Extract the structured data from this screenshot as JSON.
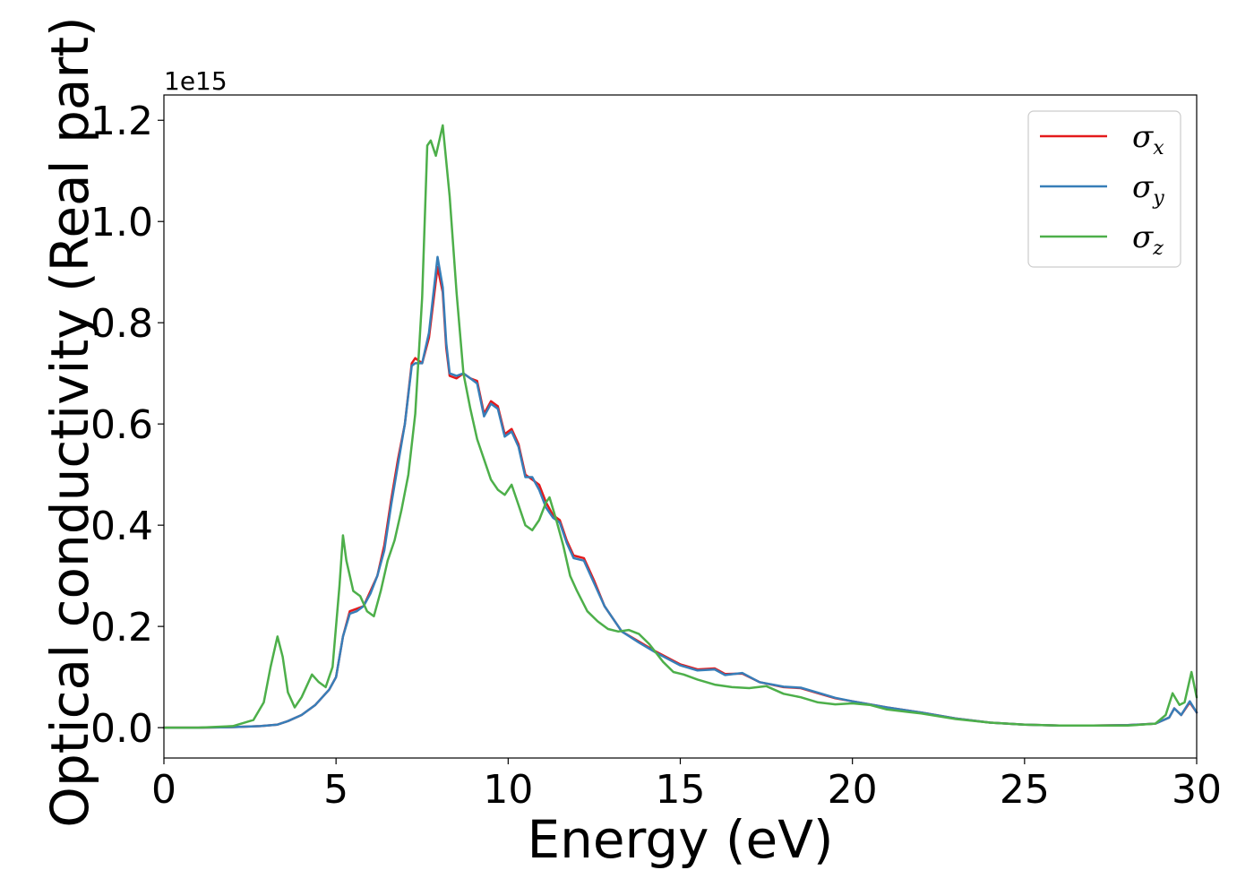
{
  "chart_data": {
    "type": "line",
    "xlabel": "Energy (eV)",
    "ylabel": "Optical conductivity (Real part)",
    "y_offset_label": "1e15",
    "xlim": [
      0,
      30
    ],
    "ylim": [
      -0.06,
      1.25
    ],
    "x_ticks": [
      0,
      5,
      10,
      15,
      20,
      25,
      30
    ],
    "x_tick_labels": [
      "0",
      "5",
      "10",
      "15",
      "20",
      "25",
      "30"
    ],
    "y_ticks": [
      0.0,
      0.2,
      0.4,
      0.6,
      0.8,
      1.0,
      1.2
    ],
    "y_tick_labels": [
      "0.0",
      "0.2",
      "0.4",
      "0.6",
      "0.8",
      "1.0",
      "1.2"
    ],
    "grid": false,
    "legend_position": "top-right",
    "series": [
      {
        "name": "σx",
        "symbol": "σ",
        "subscript": "x",
        "color": "#e41a1c",
        "points": [
          [
            0,
            0.0
          ],
          [
            1,
            0.0
          ],
          [
            2,
            0.001
          ],
          [
            2.8,
            0.003
          ],
          [
            3.3,
            0.006
          ],
          [
            3.6,
            0.013
          ],
          [
            4.0,
            0.025
          ],
          [
            4.4,
            0.045
          ],
          [
            4.8,
            0.075
          ],
          [
            5.0,
            0.1
          ],
          [
            5.2,
            0.18
          ],
          [
            5.4,
            0.23
          ],
          [
            5.6,
            0.235
          ],
          [
            5.8,
            0.24
          ],
          [
            6.0,
            0.27
          ],
          [
            6.2,
            0.3
          ],
          [
            6.4,
            0.36
          ],
          [
            6.6,
            0.45
          ],
          [
            6.8,
            0.53
          ],
          [
            7.0,
            0.6
          ],
          [
            7.2,
            0.72
          ],
          [
            7.3,
            0.73
          ],
          [
            7.5,
            0.72
          ],
          [
            7.7,
            0.77
          ],
          [
            7.95,
            0.91
          ],
          [
            8.1,
            0.86
          ],
          [
            8.2,
            0.75
          ],
          [
            8.3,
            0.695
          ],
          [
            8.5,
            0.69
          ],
          [
            8.7,
            0.7
          ],
          [
            8.9,
            0.69
          ],
          [
            9.1,
            0.685
          ],
          [
            9.3,
            0.62
          ],
          [
            9.5,
            0.645
          ],
          [
            9.7,
            0.635
          ],
          [
            9.9,
            0.58
          ],
          [
            10.1,
            0.59
          ],
          [
            10.3,
            0.56
          ],
          [
            10.5,
            0.5
          ],
          [
            10.7,
            0.49
          ],
          [
            10.9,
            0.48
          ],
          [
            11.1,
            0.445
          ],
          [
            11.3,
            0.42
          ],
          [
            11.5,
            0.41
          ],
          [
            11.7,
            0.37
          ],
          [
            11.9,
            0.34
          ],
          [
            12.2,
            0.335
          ],
          [
            12.5,
            0.29
          ],
          [
            12.8,
            0.24
          ],
          [
            13.0,
            0.22
          ],
          [
            13.3,
            0.19
          ],
          [
            13.8,
            0.17
          ],
          [
            14.3,
            0.15
          ],
          [
            15.0,
            0.125
          ],
          [
            15.5,
            0.115
          ],
          [
            16.0,
            0.117
          ],
          [
            16.3,
            0.106
          ],
          [
            16.8,
            0.107
          ],
          [
            17.3,
            0.09
          ],
          [
            18.0,
            0.08
          ],
          [
            18.5,
            0.078
          ],
          [
            19.0,
            0.068
          ],
          [
            19.5,
            0.058
          ],
          [
            20.0,
            0.052
          ],
          [
            21.0,
            0.04
          ],
          [
            22.0,
            0.03
          ],
          [
            23.0,
            0.018
          ],
          [
            24.0,
            0.01
          ],
          [
            25.0,
            0.006
          ],
          [
            26.0,
            0.004
          ],
          [
            27.0,
            0.004
          ],
          [
            28.0,
            0.005
          ],
          [
            28.8,
            0.008
          ],
          [
            29.2,
            0.02
          ],
          [
            29.35,
            0.038
          ],
          [
            29.55,
            0.025
          ],
          [
            29.8,
            0.05
          ],
          [
            30.0,
            0.03
          ]
        ]
      },
      {
        "name": "σy",
        "symbol": "σ",
        "subscript": "y",
        "color": "#377eb8",
        "points": [
          [
            0,
            0.0
          ],
          [
            1,
            0.0
          ],
          [
            2,
            0.001
          ],
          [
            2.8,
            0.003
          ],
          [
            3.3,
            0.006
          ],
          [
            3.6,
            0.013
          ],
          [
            4.0,
            0.025
          ],
          [
            4.4,
            0.045
          ],
          [
            4.8,
            0.075
          ],
          [
            5.0,
            0.1
          ],
          [
            5.2,
            0.18
          ],
          [
            5.4,
            0.225
          ],
          [
            5.6,
            0.23
          ],
          [
            5.8,
            0.24
          ],
          [
            6.0,
            0.265
          ],
          [
            6.2,
            0.3
          ],
          [
            6.4,
            0.35
          ],
          [
            6.6,
            0.44
          ],
          [
            6.8,
            0.52
          ],
          [
            7.0,
            0.6
          ],
          [
            7.2,
            0.715
          ],
          [
            7.3,
            0.72
          ],
          [
            7.5,
            0.72
          ],
          [
            7.7,
            0.78
          ],
          [
            7.95,
            0.93
          ],
          [
            8.1,
            0.87
          ],
          [
            8.2,
            0.76
          ],
          [
            8.3,
            0.7
          ],
          [
            8.5,
            0.695
          ],
          [
            8.7,
            0.7
          ],
          [
            8.9,
            0.69
          ],
          [
            9.1,
            0.68
          ],
          [
            9.3,
            0.615
          ],
          [
            9.5,
            0.64
          ],
          [
            9.7,
            0.63
          ],
          [
            9.9,
            0.575
          ],
          [
            10.1,
            0.585
          ],
          [
            10.3,
            0.555
          ],
          [
            10.5,
            0.495
          ],
          [
            10.7,
            0.495
          ],
          [
            10.9,
            0.47
          ],
          [
            11.1,
            0.435
          ],
          [
            11.3,
            0.415
          ],
          [
            11.5,
            0.405
          ],
          [
            11.7,
            0.365
          ],
          [
            11.9,
            0.335
          ],
          [
            12.2,
            0.33
          ],
          [
            12.5,
            0.285
          ],
          [
            12.8,
            0.24
          ],
          [
            13.0,
            0.22
          ],
          [
            13.3,
            0.19
          ],
          [
            13.8,
            0.168
          ],
          [
            14.3,
            0.148
          ],
          [
            15.0,
            0.123
          ],
          [
            15.5,
            0.113
          ],
          [
            16.0,
            0.115
          ],
          [
            16.3,
            0.104
          ],
          [
            16.8,
            0.108
          ],
          [
            17.3,
            0.09
          ],
          [
            18.0,
            0.081
          ],
          [
            18.5,
            0.079
          ],
          [
            19.0,
            0.069
          ],
          [
            19.5,
            0.059
          ],
          [
            20.0,
            0.052
          ],
          [
            21.0,
            0.04
          ],
          [
            22.0,
            0.03
          ],
          [
            23.0,
            0.018
          ],
          [
            24.0,
            0.01
          ],
          [
            25.0,
            0.006
          ],
          [
            26.0,
            0.004
          ],
          [
            27.0,
            0.004
          ],
          [
            28.0,
            0.005
          ],
          [
            28.8,
            0.008
          ],
          [
            29.2,
            0.02
          ],
          [
            29.35,
            0.038
          ],
          [
            29.55,
            0.025
          ],
          [
            29.8,
            0.052
          ],
          [
            30.0,
            0.03
          ]
        ]
      },
      {
        "name": "σz",
        "symbol": "σ",
        "subscript": "z",
        "color": "#4daf4a",
        "points": [
          [
            0,
            0.0
          ],
          [
            1,
            0.0
          ],
          [
            2,
            0.003
          ],
          [
            2.6,
            0.015
          ],
          [
            2.9,
            0.05
          ],
          [
            3.1,
            0.12
          ],
          [
            3.3,
            0.18
          ],
          [
            3.45,
            0.14
          ],
          [
            3.6,
            0.07
          ],
          [
            3.8,
            0.04
          ],
          [
            4.0,
            0.06
          ],
          [
            4.3,
            0.105
          ],
          [
            4.5,
            0.09
          ],
          [
            4.7,
            0.08
          ],
          [
            4.9,
            0.12
          ],
          [
            5.1,
            0.28
          ],
          [
            5.2,
            0.38
          ],
          [
            5.3,
            0.33
          ],
          [
            5.5,
            0.27
          ],
          [
            5.7,
            0.26
          ],
          [
            5.9,
            0.23
          ],
          [
            6.1,
            0.22
          ],
          [
            6.3,
            0.27
          ],
          [
            6.5,
            0.33
          ],
          [
            6.7,
            0.37
          ],
          [
            6.9,
            0.43
          ],
          [
            7.1,
            0.5
          ],
          [
            7.3,
            0.62
          ],
          [
            7.5,
            0.85
          ],
          [
            7.65,
            1.15
          ],
          [
            7.75,
            1.16
          ],
          [
            7.9,
            1.13
          ],
          [
            8.1,
            1.19
          ],
          [
            8.3,
            1.05
          ],
          [
            8.5,
            0.86
          ],
          [
            8.7,
            0.7
          ],
          [
            8.9,
            0.63
          ],
          [
            9.1,
            0.57
          ],
          [
            9.3,
            0.53
          ],
          [
            9.5,
            0.49
          ],
          [
            9.7,
            0.47
          ],
          [
            9.9,
            0.46
          ],
          [
            10.1,
            0.48
          ],
          [
            10.3,
            0.44
          ],
          [
            10.5,
            0.4
          ],
          [
            10.7,
            0.39
          ],
          [
            10.9,
            0.41
          ],
          [
            11.1,
            0.445
          ],
          [
            11.2,
            0.455
          ],
          [
            11.4,
            0.41
          ],
          [
            11.6,
            0.36
          ],
          [
            11.8,
            0.3
          ],
          [
            12.0,
            0.27
          ],
          [
            12.3,
            0.23
          ],
          [
            12.6,
            0.21
          ],
          [
            12.9,
            0.195
          ],
          [
            13.2,
            0.19
          ],
          [
            13.5,
            0.193
          ],
          [
            13.8,
            0.185
          ],
          [
            14.1,
            0.165
          ],
          [
            14.5,
            0.13
          ],
          [
            14.8,
            0.11
          ],
          [
            15.1,
            0.105
          ],
          [
            15.5,
            0.095
          ],
          [
            16.0,
            0.085
          ],
          [
            16.5,
            0.08
          ],
          [
            17.0,
            0.078
          ],
          [
            17.5,
            0.082
          ],
          [
            18.0,
            0.067
          ],
          [
            18.5,
            0.06
          ],
          [
            19.0,
            0.05
          ],
          [
            19.5,
            0.046
          ],
          [
            20.0,
            0.048
          ],
          [
            20.5,
            0.045
          ],
          [
            21.0,
            0.036
          ],
          [
            22.0,
            0.028
          ],
          [
            23.0,
            0.017
          ],
          [
            24.0,
            0.01
          ],
          [
            25.0,
            0.006
          ],
          [
            26.0,
            0.004
          ],
          [
            27.0,
            0.004
          ],
          [
            28.0,
            0.004
          ],
          [
            28.8,
            0.008
          ],
          [
            29.1,
            0.025
          ],
          [
            29.3,
            0.068
          ],
          [
            29.5,
            0.045
          ],
          [
            29.65,
            0.05
          ],
          [
            29.85,
            0.11
          ],
          [
            30.0,
            0.06
          ]
        ]
      }
    ]
  }
}
